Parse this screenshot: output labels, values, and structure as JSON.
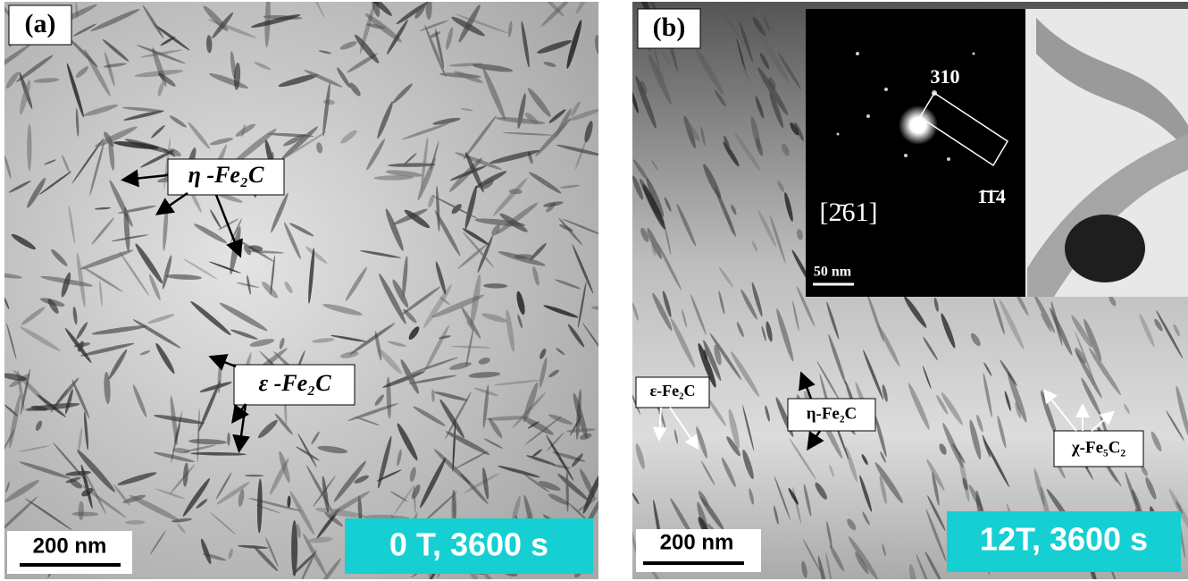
{
  "panels": [
    {
      "label": "(a)",
      "annotations": [
        "η -Fe₂C",
        "ε -Fe₂C"
      ],
      "scale_bar": "200 nm",
      "condition": "0 T, 3600 s"
    },
    {
      "label": "(b)",
      "annotations": [
        "ε-Fe₂C",
        "η-Fe₂C",
        "χ-Fe₅C₂"
      ],
      "scale_bar": "200 nm",
      "condition": "12T, 3600 s",
      "inset": {
        "spot_a": "310",
        "spot_b": "1̄1̄4",
        "zone_axis": "[2̄61]",
        "scale_bar": "50 nm"
      }
    }
  ]
}
